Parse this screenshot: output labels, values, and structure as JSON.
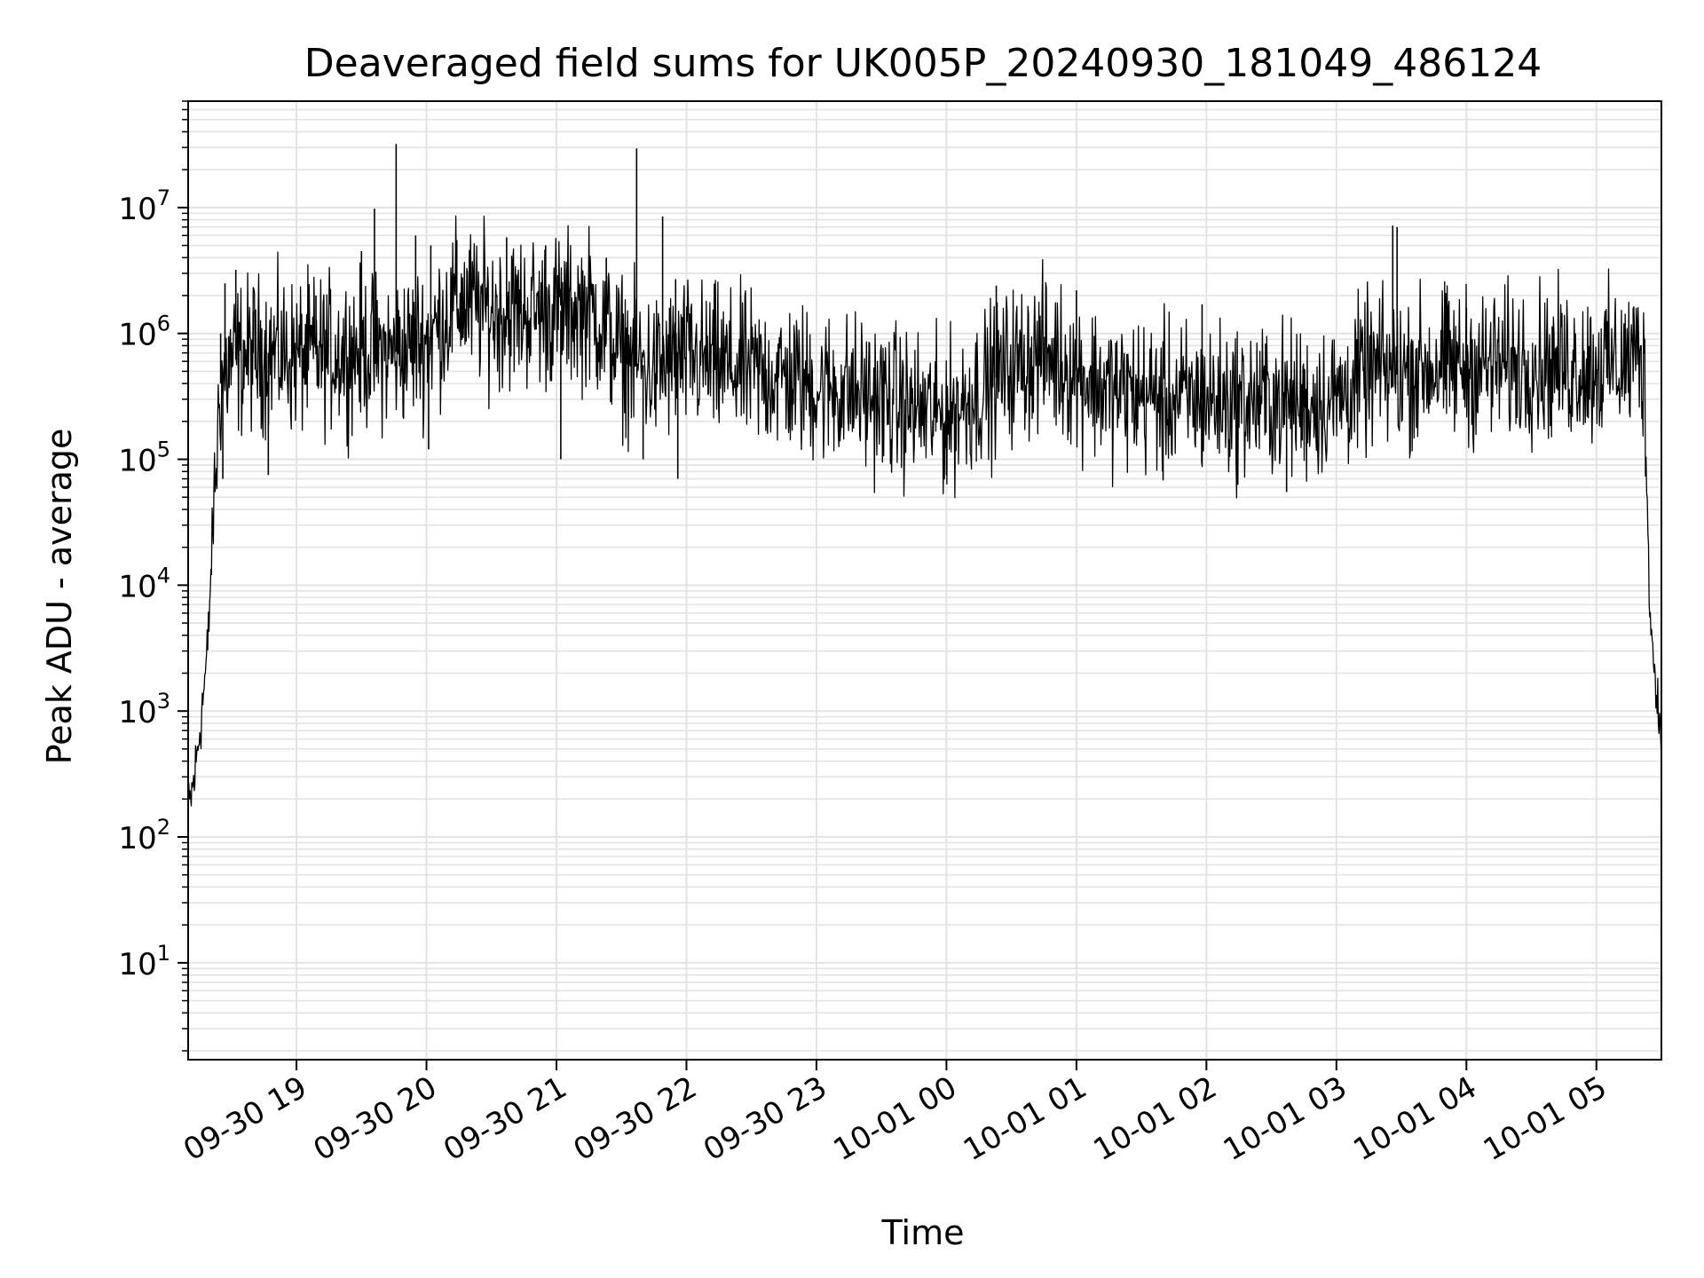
{
  "chart_data": {
    "type": "line",
    "title": "Deaveraged field sums for UK005P_20240930_181049_486124",
    "xlabel": "Time",
    "ylabel": "Peak ADU - average",
    "yscale": "log",
    "ylim": [
      1.7,
      70000000
    ],
    "xlim": [
      "2024-09-30 18:10",
      "2024-10-01 05:30"
    ],
    "grid": true,
    "line_color": "#000000",
    "grid_color": "#e3e3e3",
    "x_ticks": [
      {
        "t": "2024-09-30 19:00",
        "label": "09-30 19"
      },
      {
        "t": "2024-09-30 20:00",
        "label": "09-30 20"
      },
      {
        "t": "2024-09-30 21:00",
        "label": "09-30 21"
      },
      {
        "t": "2024-09-30 22:00",
        "label": "09-30 22"
      },
      {
        "t": "2024-09-30 23:00",
        "label": "09-30 23"
      },
      {
        "t": "2024-10-01 00:00",
        "label": "10-01 00"
      },
      {
        "t": "2024-10-01 01:00",
        "label": "10-01 01"
      },
      {
        "t": "2024-10-01 02:00",
        "label": "10-01 02"
      },
      {
        "t": "2024-10-01 03:00",
        "label": "10-01 03"
      },
      {
        "t": "2024-10-01 04:00",
        "label": "10-01 04"
      },
      {
        "t": "2024-10-01 05:00",
        "label": "10-01 05"
      }
    ],
    "y_ticks": [
      {
        "value": 10,
        "base": "10",
        "exp": "1"
      },
      {
        "value": 100,
        "base": "10",
        "exp": "2"
      },
      {
        "value": 1000,
        "base": "10",
        "exp": "3"
      },
      {
        "value": 10000,
        "base": "10",
        "exp": "4"
      },
      {
        "value": 100000,
        "base": "10",
        "exp": "5"
      },
      {
        "value": 1000000,
        "base": "10",
        "exp": "6"
      },
      {
        "value": 10000000,
        "base": "10",
        "exp": "7"
      }
    ],
    "series": [
      {
        "x": [
          "2024-09-30 18:10",
          "2024-09-30 18:13",
          "2024-09-30 18:16",
          "2024-09-30 18:19",
          "2024-09-30 18:21",
          "2024-09-30 18:23",
          "2024-09-30 18:25",
          "2024-09-30 18:30",
          "2024-09-30 18:40",
          "2024-09-30 18:50",
          "2024-09-30 19:00",
          "2024-09-30 19:15",
          "2024-09-30 19:30",
          "2024-09-30 19:45",
          "2024-09-30 20:00",
          "2024-09-30 20:15",
          "2024-09-30 20:30",
          "2024-09-30 20:45",
          "2024-09-30 21:00",
          "2024-09-30 21:15",
          "2024-09-30 21:30",
          "2024-09-30 21:45",
          "2024-09-30 22:00",
          "2024-09-30 22:15",
          "2024-09-30 22:30",
          "2024-09-30 22:45",
          "2024-09-30 23:00",
          "2024-09-30 23:15",
          "2024-09-30 23:30",
          "2024-09-30 23:45",
          "2024-10-01 00:00",
          "2024-10-01 00:15",
          "2024-10-01 00:30",
          "2024-10-01 00:45",
          "2024-10-01 01:00",
          "2024-10-01 01:15",
          "2024-10-01 01:30",
          "2024-10-01 01:45",
          "2024-10-01 02:00",
          "2024-10-01 02:15",
          "2024-10-01 02:30",
          "2024-10-01 02:45",
          "2024-10-01 03:00",
          "2024-10-01 03:15",
          "2024-10-01 03:30",
          "2024-10-01 03:45",
          "2024-10-01 04:00",
          "2024-10-01 04:15",
          "2024-10-01 04:30",
          "2024-10-01 04:45",
          "2024-10-01 05:00",
          "2024-10-01 05:15",
          "2024-10-01 05:20",
          "2024-10-01 05:22",
          "2024-10-01 05:25",
          "2024-10-01 05:28",
          "2024-10-01 05:30"
        ],
        "y": [
          150,
          300,
          900,
          3000,
          20000,
          100000,
          400000,
          600000,
          700000,
          700000,
          650000,
          700000,
          750000,
          700000,
          900000,
          1800000,
          1500000,
          1500000,
          1500000,
          1600000,
          700000,
          500000,
          650000,
          550000,
          500000,
          450000,
          380000,
          350000,
          300000,
          250000,
          220000,
          350000,
          550000,
          700000,
          500000,
          350000,
          330000,
          300000,
          300000,
          280000,
          300000,
          280000,
          300000,
          500000,
          500000,
          550000,
          550000,
          550000,
          600000,
          550000,
          550000,
          600000,
          700000,
          500000,
          5000,
          1200,
          800
        ],
        "noise": 1.2
      }
    ],
    "spikes": [
      {
        "t": "2024-09-30 18:25",
        "value": 1000000
      },
      {
        "t": "2024-09-30 18:27",
        "value": 2500000
      },
      {
        "t": "2024-09-30 18:32",
        "value": 3200000
      },
      {
        "t": "2024-09-30 18:40",
        "value": 1500000
      },
      {
        "t": "2024-09-30 19:09",
        "value": 2000000
      },
      {
        "t": "2024-09-30 19:30",
        "value": 4500000
      },
      {
        "t": "2024-09-30 19:36",
        "value": 9800000
      },
      {
        "t": "2024-09-30 19:46",
        "value": 32000000
      },
      {
        "t": "2024-09-30 19:55",
        "value": 6000000
      },
      {
        "t": "2024-09-30 20:02",
        "value": 5000000
      },
      {
        "t": "2024-09-30 20:14",
        "value": 5500000
      },
      {
        "t": "2024-09-30 20:37",
        "value": 5800000
      },
      {
        "t": "2024-09-30 20:55",
        "value": 5000000
      },
      {
        "t": "2024-09-30 21:23",
        "value": 4000000
      },
      {
        "t": "2024-09-30 21:37",
        "value": 29500000
      },
      {
        "t": "2024-09-30 21:49",
        "value": 8500000
      },
      {
        "t": "2024-09-30 21:55",
        "value": 2700000
      },
      {
        "t": "2024-09-30 22:25",
        "value": 2000000
      },
      {
        "t": "2024-10-01 00:23",
        "value": 2400000
      },
      {
        "t": "2024-10-01 01:00",
        "value": 2200000
      },
      {
        "t": "2024-10-01 01:58",
        "value": 1700000
      },
      {
        "t": "2024-10-01 03:26",
        "value": 7200000
      },
      {
        "t": "2024-10-01 03:28",
        "value": 7000000
      },
      {
        "t": "2024-10-01 04:00",
        "value": 1600000
      },
      {
        "t": "2024-10-01 05:17",
        "value": 1600000
      }
    ],
    "dips": [
      {
        "t": "2024-09-30 18:26",
        "value": 70000
      },
      {
        "t": "2024-09-30 18:47",
        "value": 75000
      },
      {
        "t": "2024-09-30 20:01",
        "value": 120000
      },
      {
        "t": "2024-09-30 21:02",
        "value": 100000
      },
      {
        "t": "2024-09-30 21:40",
        "value": 100000
      },
      {
        "t": "2024-09-30 21:56",
        "value": 70000
      },
      {
        "t": "2024-10-01 00:00",
        "value": 75000
      },
      {
        "t": "2024-10-01 01:40",
        "value": 68000
      },
      {
        "t": "2024-10-01 02:37",
        "value": 55000
      }
    ]
  }
}
